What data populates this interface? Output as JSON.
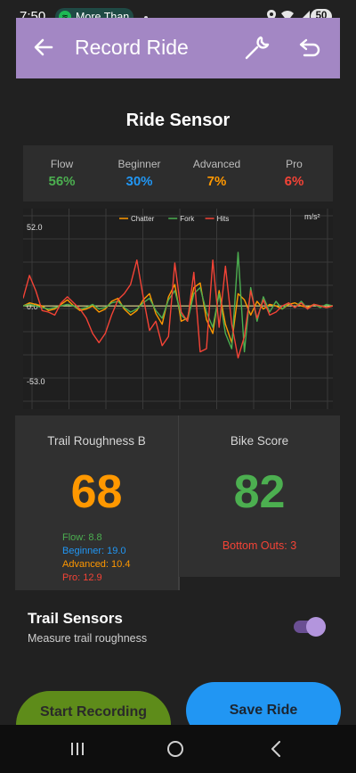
{
  "status_bar": {
    "time": "7:50",
    "notification": "More Than",
    "battery": "50"
  },
  "app_bar": {
    "title": "Record Ride"
  },
  "section_title": "Ride Sensor",
  "levels": [
    {
      "label": "Flow",
      "value": "56%",
      "color": "#4caf50"
    },
    {
      "label": "Beginner",
      "value": "30%",
      "color": "#2196f3"
    },
    {
      "label": "Advanced",
      "value": "7%",
      "color": "#ff9800"
    },
    {
      "label": "Pro",
      "value": "6%",
      "color": "#f44336"
    }
  ],
  "chart_data": {
    "type": "line",
    "unit": "m/s²",
    "ylim": [
      -53.0,
      52.0
    ],
    "ytick_labels": [
      "52.0",
      "0.0",
      "-53.0"
    ],
    "grid": true,
    "legend_placement": "top-center",
    "x": [
      0,
      4,
      8,
      12,
      16,
      20,
      24,
      28,
      32,
      36,
      40,
      44,
      48,
      52,
      56,
      60,
      64,
      68,
      72,
      76,
      80,
      84,
      88,
      92,
      96,
      100,
      104,
      108,
      112,
      116,
      120,
      124,
      128,
      132,
      136,
      140,
      144,
      148,
      152,
      156,
      160,
      164,
      168,
      172,
      176,
      180,
      184,
      188,
      192,
      196
    ],
    "series": [
      {
        "name": "Chatter",
        "color": "#ff9800",
        "values": [
          0,
          2,
          1,
          0,
          -3,
          -2,
          1,
          4,
          0,
          -3,
          -2,
          0,
          -4,
          -2,
          3,
          5,
          -2,
          -6,
          -3,
          4,
          8,
          -5,
          -12,
          6,
          14,
          -10,
          -8,
          12,
          15,
          -9,
          -18,
          10,
          -12,
          -24,
          8,
          4,
          -6,
          3,
          -2,
          1,
          0,
          -2,
          1,
          2,
          0,
          -1,
          1,
          0,
          -1,
          0
        ]
      },
      {
        "name": "Fork",
        "color": "#4caf50",
        "values": [
          0,
          1,
          0,
          -1,
          -2,
          -1,
          0,
          1,
          0,
          -2,
          -1,
          1,
          -2,
          -1,
          2,
          3,
          -1,
          -4,
          -2,
          2,
          5,
          -3,
          -8,
          4,
          10,
          -6,
          -10,
          8,
          12,
          -4,
          -14,
          8,
          -18,
          -28,
          35,
          -30,
          12,
          -10,
          6,
          -4,
          3,
          -2,
          2,
          -1,
          3,
          -2,
          1,
          -1,
          1,
          0
        ]
      },
      {
        "name": "Hits",
        "color": "#f44336",
        "values": [
          5,
          20,
          10,
          -3,
          -4,
          -6,
          2,
          6,
          2,
          -2,
          -8,
          -18,
          -24,
          -18,
          -6,
          4,
          8,
          14,
          30,
          6,
          -16,
          -10,
          -26,
          -20,
          28,
          -4,
          -10,
          22,
          -30,
          -28,
          30,
          -14,
          26,
          -12,
          -34,
          -20,
          10,
          -8,
          4,
          -6,
          -4,
          0,
          2,
          -1,
          2,
          -2,
          1,
          0,
          -1,
          0
        ]
      }
    ]
  },
  "roughness_card": {
    "title": "Trail Roughness B",
    "value": "68",
    "value_color": "#ff9800",
    "breakdown": [
      {
        "text": "Flow: 8.8",
        "color": "#4caf50"
      },
      {
        "text": "Beginner: 19.0",
        "color": "#2196f3"
      },
      {
        "text": "Advanced: 10.4",
        "color": "#ff9800"
      },
      {
        "text": "Pro: 12.9",
        "color": "#f44336"
      }
    ]
  },
  "score_card": {
    "title": "Bike Score",
    "value": "82",
    "value_color": "#4caf50",
    "bottom_outs": "Bottom Outs: 3"
  },
  "trail_sensors": {
    "title": "Trail Sensors",
    "subtitle": "Measure trail roughness",
    "enabled": true
  },
  "buttons": {
    "start": "Start Recording",
    "save": "Save Ride"
  },
  "icons": [
    "back-arrow-icon",
    "wrench-icon",
    "undo-icon",
    "spotify-icon",
    "location-icon",
    "wifi-icon",
    "signal-icon"
  ]
}
